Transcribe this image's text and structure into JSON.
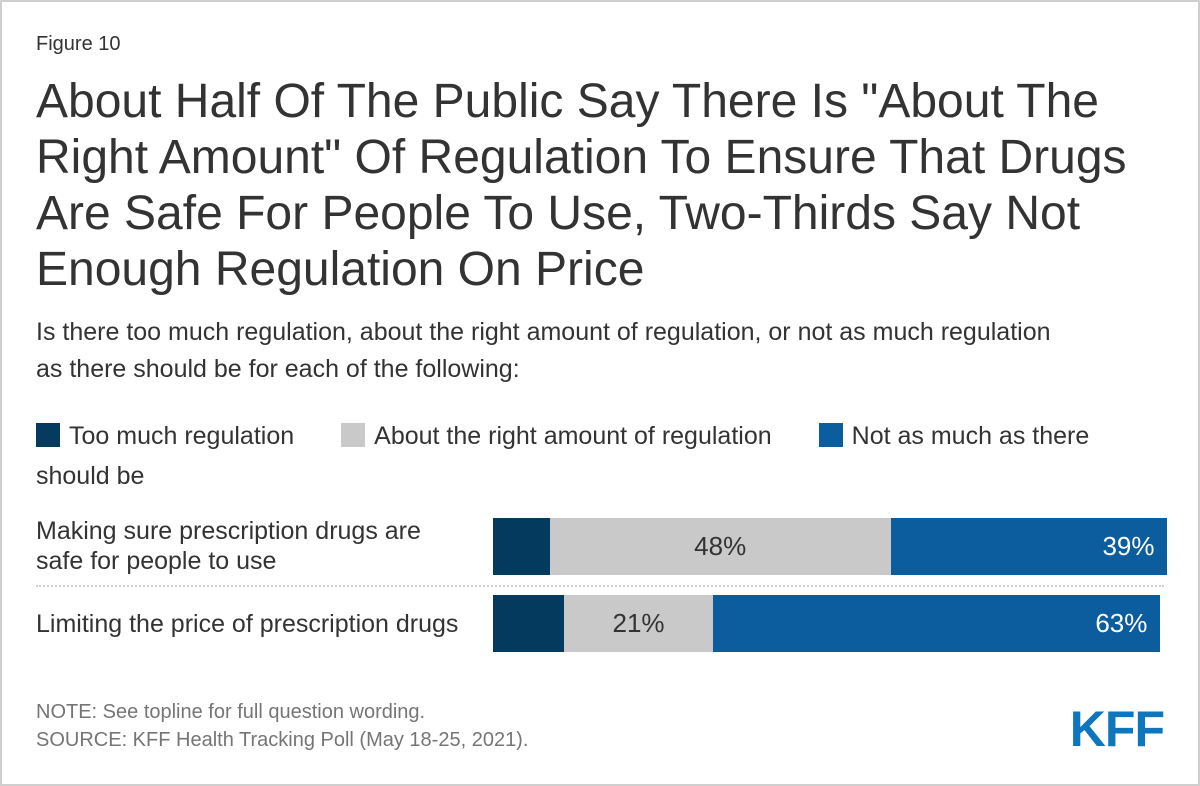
{
  "figure_label": "Figure 10",
  "title": "About Half Of The Public Say There Is \"About The Right Amount\" Of Regulation To Ensure That Drugs Are Safe For People To Use, Two-Thirds Say Not Enough Regulation On Price",
  "subtitle": "Is there too much regulation, about the right amount of regulation, or not as much regulation as there should be for each of the following:",
  "footer": {
    "note": "NOTE: See topline for full question wording.",
    "source": "SOURCE: KFF Health Tracking Poll (May 18-25, 2021).",
    "logo_text": "KFF"
  },
  "colors": {
    "too_much_navy": "#043a5e",
    "about_right_gray": "#c9c9c9",
    "not_as_much_blue": "#0b5d9e",
    "logo_blue": "#0e76bc",
    "text_dark": "#333333",
    "note_gray": "#757575",
    "border_gray": "#cfcfcf"
  },
  "chart_data": {
    "type": "bar",
    "orientation": "horizontal",
    "stacked": true,
    "xlim": [
      0,
      100
    ],
    "unit": "percent",
    "legend_position": "top",
    "categories": [
      "Making sure prescription drugs are safe for people to use",
      "Limiting the price of prescription drugs"
    ],
    "series": [
      {
        "name": "Too much regulation",
        "color": "#043a5e",
        "values": [
          8,
          10
        ],
        "value_labels": [
          "",
          ""
        ],
        "label_align": "none",
        "label_color": "#ffffff"
      },
      {
        "name": "About the right amount of regulation",
        "color": "#c9c9c9",
        "values": [
          48,
          21
        ],
        "value_labels": [
          "48%",
          "21%"
        ],
        "label_align": "center",
        "label_color": "#333333"
      },
      {
        "name": "Not as much as there should be",
        "color": "#0b5d9e",
        "values": [
          39,
          63
        ],
        "value_labels": [
          "39%",
          "63%"
        ],
        "label_align": "right",
        "label_color": "#ffffff"
      }
    ]
  }
}
